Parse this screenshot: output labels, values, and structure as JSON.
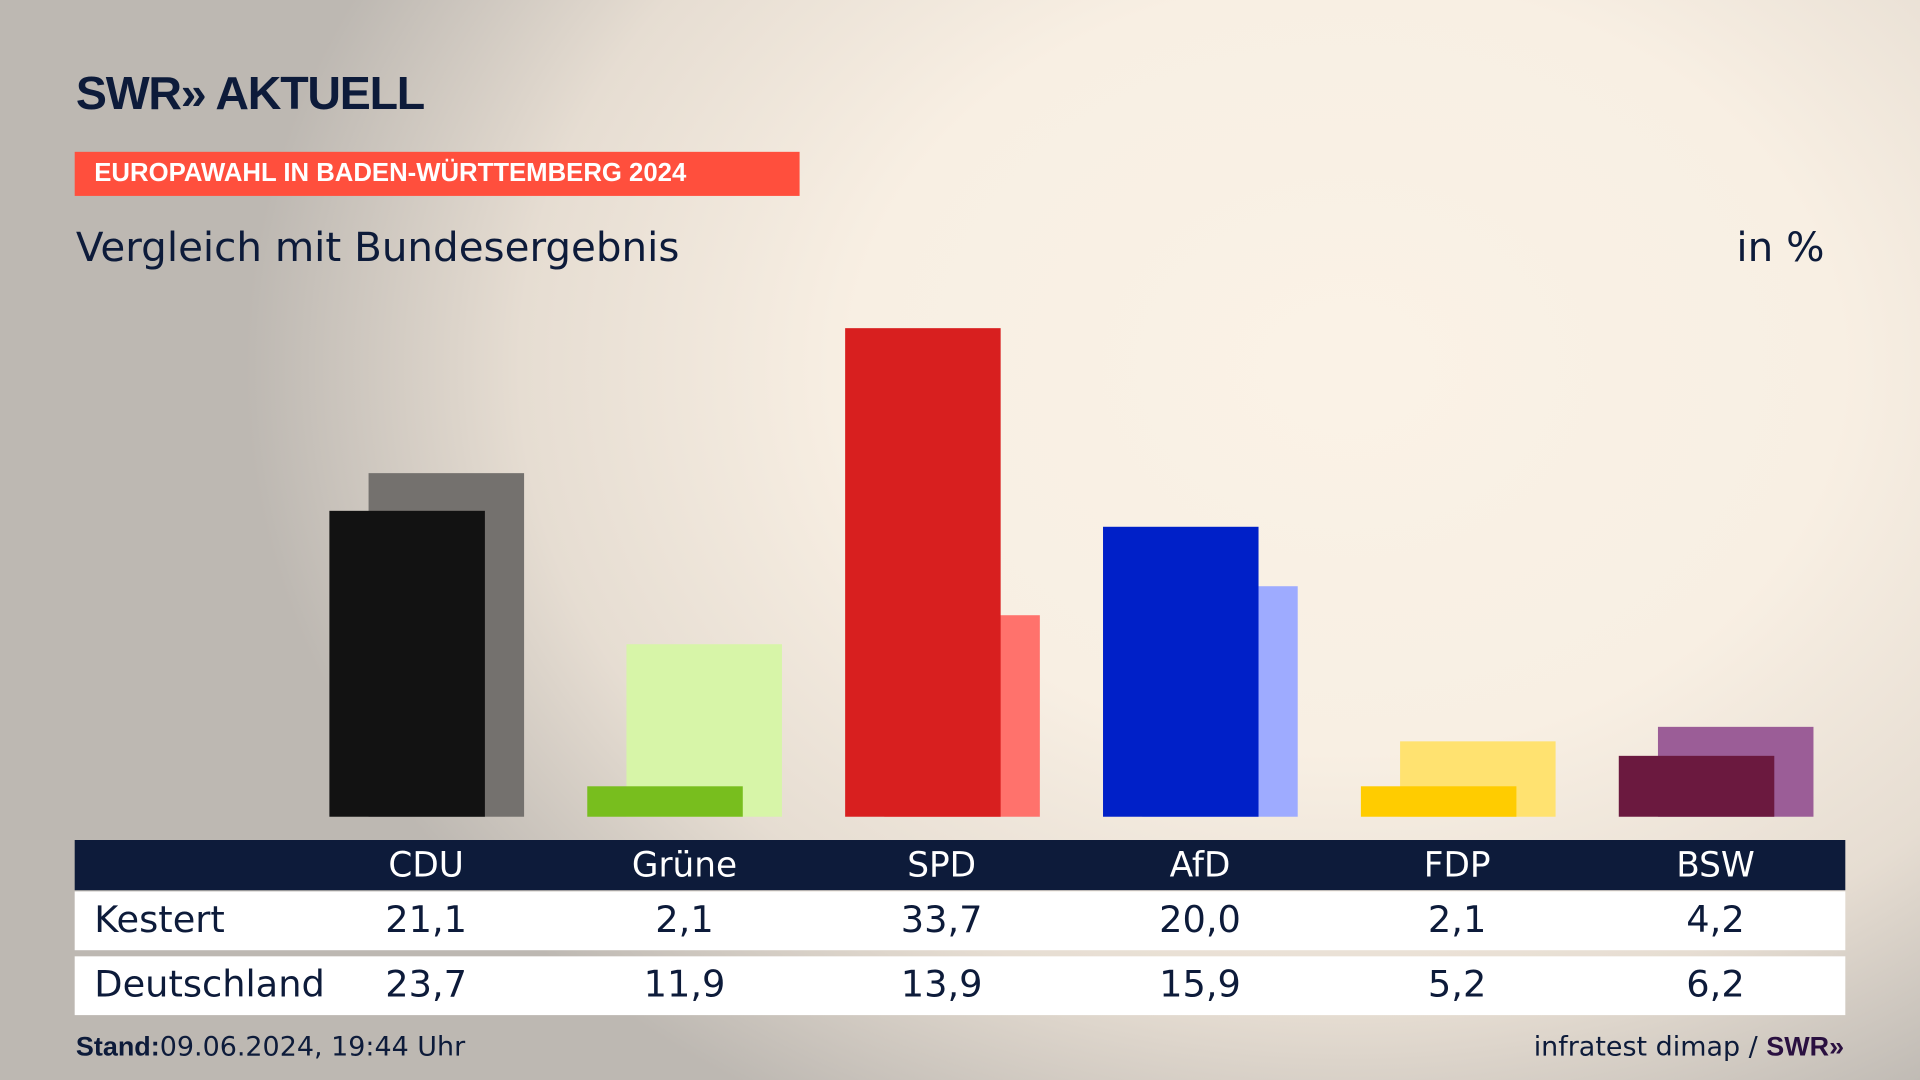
{
  "header": {
    "logo": "SWR» AKTUELL",
    "banner": "EUROPAWAHL IN BADEN-WÜRTTEMBERG 2024",
    "subtitle": "Vergleich mit Bundesergebnis",
    "unit": "in %"
  },
  "footer": {
    "stand_label": "Stand:",
    "stand_value": "09.06.2024, 19:44 Uhr",
    "source": "infratest dimap / ",
    "source_logo": "SWR»"
  },
  "chart_data": {
    "type": "bar",
    "title": "Vergleich mit Bundesergebnis",
    "ylabel": "in %",
    "ylim": [
      0,
      33.7
    ],
    "grid": false,
    "categories": [
      "CDU",
      "Grüne",
      "SPD",
      "AfD",
      "FDP",
      "BSW"
    ],
    "series": [
      {
        "name": "Kestert",
        "values": [
          "21,1",
          "2,1",
          "33,7",
          "20,0",
          "2,1",
          "4,2"
        ],
        "num": [
          21.1,
          2.1,
          33.7,
          20.0,
          2.1,
          4.2
        ],
        "colors": [
          "#121212",
          "#78be1e",
          "#d81f1f",
          "#0020c8",
          "#ffcc00",
          "#6b193f"
        ]
      },
      {
        "name": "Deutschland",
        "values": [
          "23,7",
          "11,9",
          "13,9",
          "15,9",
          "5,2",
          "6,2"
        ],
        "num": [
          23.7,
          11.9,
          13.9,
          15.9,
          5.2,
          6.2
        ],
        "colors": [
          "#74716e",
          "#d7f5a8",
          "#ff726c",
          "#9eabff",
          "#ffe270",
          "#9b5d97"
        ]
      }
    ]
  }
}
